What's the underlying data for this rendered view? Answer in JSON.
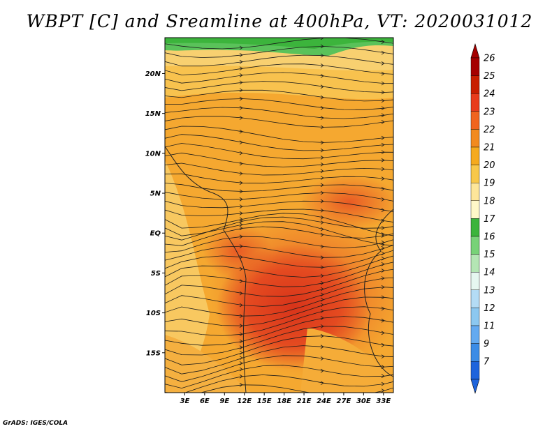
{
  "title": "WBPT [C] and Sreamline at 400hPa, VT: 2020031012",
  "footer": "GrADS: IGES/COLA",
  "map": {
    "lat_labels": [
      "20N",
      "15N",
      "10N",
      "5N",
      "EQ",
      "5S",
      "10S",
      "15S"
    ],
    "lat_values": [
      20,
      15,
      10,
      5,
      0,
      -5,
      -10,
      -15
    ],
    "lon_labels": [
      "3E",
      "6E",
      "9E",
      "12E",
      "15E",
      "18E",
      "21E",
      "24E",
      "27E",
      "30E",
      "33E"
    ],
    "lon_values": [
      3,
      6,
      9,
      12,
      15,
      18,
      21,
      24,
      27,
      30,
      33
    ],
    "lon_range": [
      0,
      34.5
    ],
    "lat_range": [
      -20,
      24.5
    ]
  },
  "colorbar": {
    "labels": [
      "26",
      "25",
      "24",
      "23",
      "22",
      "21",
      "20",
      "19",
      "18",
      "17",
      "16",
      "15",
      "14",
      "13",
      "12",
      "11",
      "9",
      "7"
    ],
    "colors": [
      "#a50000",
      "#c81e00",
      "#e83c1c",
      "#f0641e",
      "#f28a1e",
      "#f5aa1e",
      "#f8c84a",
      "#fde69a",
      "#fff8c8",
      "#3cb43c",
      "#78d278",
      "#b4e6b4",
      "#e6f7f0",
      "#b4dcf5",
      "#8cc8f0",
      "#64aaf0",
      "#3c8ce6",
      "#1e64dc"
    ],
    "top_arrow_color": "#a50000",
    "bottom_arrow_color": "#1e64dc"
  }
}
